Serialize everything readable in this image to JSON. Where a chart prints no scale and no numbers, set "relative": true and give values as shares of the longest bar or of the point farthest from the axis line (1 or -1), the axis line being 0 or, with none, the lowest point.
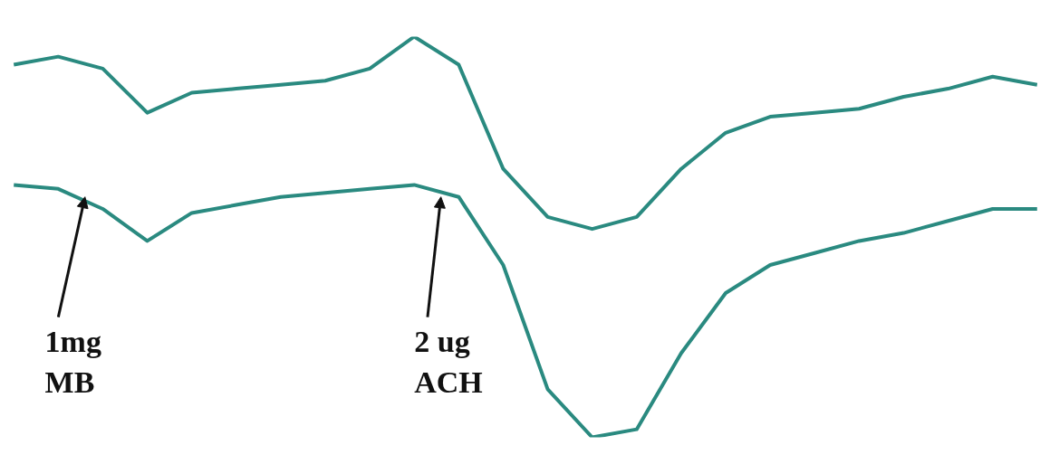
{
  "chart_data": {
    "type": "line",
    "relative": true,
    "grid": false,
    "marker": "none",
    "line_style": "solid",
    "categories": [
      null,
      null,
      null,
      null,
      null,
      null,
      null,
      null,
      null,
      null,
      null,
      null,
      null,
      null,
      null,
      null,
      null,
      null,
      null,
      null,
      null,
      null,
      null,
      null
    ],
    "series": [
      {
        "color": "#2a8a80",
        "values": [
          0.93,
          0.95,
          0.92,
          0.81,
          0.86,
          0.87,
          0.88,
          0.89,
          0.92,
          1.0,
          0.93,
          0.67,
          0.55,
          0.52,
          0.55,
          0.67,
          0.76,
          0.8,
          0.81,
          0.82,
          0.85,
          0.87,
          0.9,
          0.88
        ]
      },
      {
        "color": "#2a8a80",
        "values": [
          0.63,
          0.62,
          0.57,
          0.49,
          0.56,
          0.58,
          0.6,
          0.61,
          0.62,
          0.63,
          0.6,
          0.43,
          0.12,
          0.0,
          0.02,
          0.21,
          0.36,
          0.43,
          0.46,
          0.49,
          0.51,
          0.54,
          0.57,
          0.57
        ]
      }
    ],
    "annotations": [
      "1mg\nMB",
      "2 ug\nACH"
    ]
  }
}
